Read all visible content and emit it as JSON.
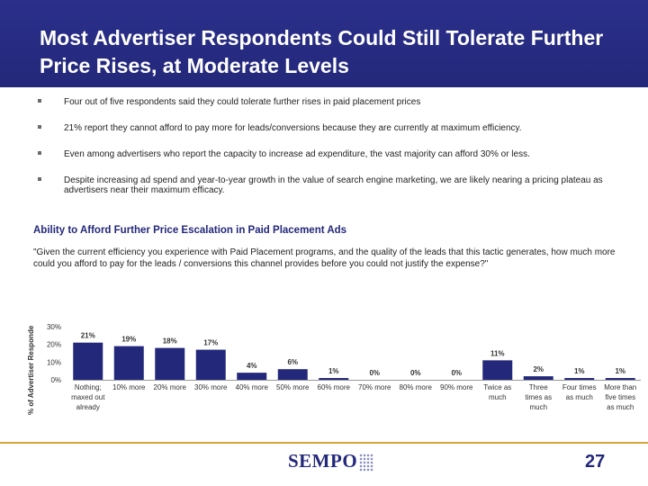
{
  "title": "Most Advertiser Respondents Could Still Tolerate Further Price Rises, at Moderate Levels",
  "bullets": [
    "Four out of five respondents said they could tolerate further rises in paid placement prices",
    "21% report they cannot afford to pay more for leads/conversions because they are currently at maximum efficiency.",
    "Even among advertisers who report the capacity to increase ad expenditure, the vast majority can afford 30% or less.",
    "Despite increasing ad spend and year-to-year growth in the value of search engine marketing, we are likely nearing a pricing plateau as advertisers near their maximum efficacy."
  ],
  "section_title": "Ability to Afford Further Price Escalation in Paid Placement Ads",
  "quote": "\"Given the current efficiency you experience with Paid Placement programs, and the quality of the leads that this tactic generates, how much more could you afford to pay for the leads / conversions this channel provides before you could not justify the expense?\"",
  "chart_data": {
    "type": "bar",
    "categories": [
      [
        "Nothing;",
        "maxed out",
        "already"
      ],
      [
        "10% more"
      ],
      [
        "20% more"
      ],
      [
        "30% more"
      ],
      [
        "40% more"
      ],
      [
        "50% more"
      ],
      [
        "60% more"
      ],
      [
        "70% more"
      ],
      [
        "80% more"
      ],
      [
        "90% more"
      ],
      [
        "Twice as",
        "much"
      ],
      [
        "Three",
        "times as",
        "much"
      ],
      [
        "Four times",
        "as much"
      ],
      [
        "More than",
        "five times",
        "as much"
      ]
    ],
    "values": [
      21,
      19,
      18,
      17,
      4,
      6,
      1,
      0,
      0,
      0,
      11,
      2,
      1,
      1
    ],
    "data_labels": [
      "21%",
      "19%",
      "18%",
      "17%",
      "4%",
      "6%",
      "1%",
      "0%",
      "0%",
      "0%",
      "11%",
      "2%",
      "1%",
      "1%"
    ],
    "ylabel": "% of Advertiser Responde",
    "yticks": [
      "0%",
      "10%",
      "20%",
      "30%"
    ],
    "ylim": [
      0,
      30
    ],
    "bar_color": "#23287a"
  },
  "logo_text": "SEMPO",
  "page_number": "27"
}
